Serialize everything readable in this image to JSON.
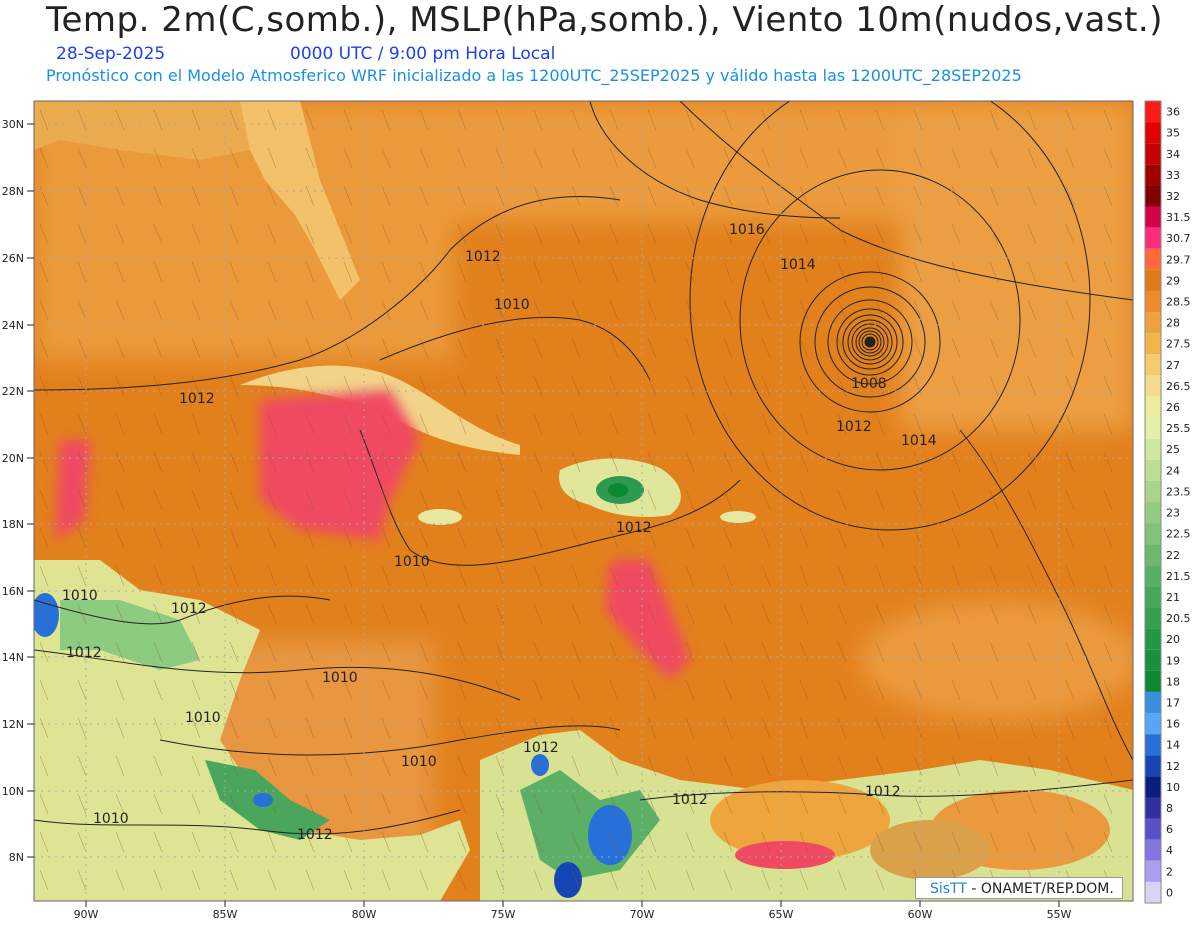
{
  "header": {
    "title": "Temp. 2m(C,somb.), MSLP(hPa,somb.), Viento 10m(nudos,vast.)",
    "date": "28-Sep-2025",
    "time": "0000 UTC / 9:00 pm Hora Local",
    "forecast_note": "Pronóstico con el Modelo Atmosferico WRF inicializado a las 1200UTC_25SEP2025 y válido hasta las  1200UTC_28SEP2025"
  },
  "axes": {
    "lat_labels": [
      "30N",
      "28N",
      "26N",
      "24N",
      "22N",
      "20N",
      "18N",
      "16N",
      "14N",
      "12N",
      "10N",
      "8N"
    ],
    "lon_labels": [
      "90W",
      "85W",
      "80W",
      "75W",
      "70W",
      "65W",
      "60W",
      "55W"
    ]
  },
  "isobars": [
    "1016",
    "1012",
    "1014",
    "1010",
    "1012",
    "1008",
    "1012",
    "1014",
    "1012",
    "1010",
    "1012",
    "1010",
    "1012",
    "1010",
    "1010",
    "1010",
    "1012",
    "1012",
    "1010",
    "1012",
    "1012"
  ],
  "legend": {
    "levels": [
      "36",
      "35",
      "34",
      "33",
      "32",
      "31.5",
      "30.7",
      "29.7",
      "29",
      "28.5",
      "28",
      "27.5",
      "27",
      "26.5",
      "26",
      "25.5",
      "25",
      "24",
      "23.5",
      "23",
      "22.5",
      "22",
      "21.5",
      "21",
      "20.5",
      "20",
      "19",
      "18",
      "17",
      "16",
      "14",
      "12",
      "10",
      "8",
      "6",
      "4",
      "2",
      "0"
    ],
    "colors": [
      "#ff1a1a",
      "#e00000",
      "#c40000",
      "#a00000",
      "#800000",
      "#d4004a",
      "#ff2a7a",
      "#ff6a3a",
      "#e27a1a",
      "#ea8c2c",
      "#f0a040",
      "#f2b54a",
      "#f4cc6e",
      "#f4dc8c",
      "#f0ea9e",
      "#e4efa8",
      "#cfe6a0",
      "#bcdd96",
      "#a8d48c",
      "#94cb82",
      "#80c278",
      "#6cb96e",
      "#58b064",
      "#44a75a",
      "#34a050",
      "#249846",
      "#18903e",
      "#0c8834",
      "#3a8fe0",
      "#56a8f4",
      "#2670d8",
      "#1446b4",
      "#0a1e80",
      "#3030a0",
      "#5a50c8",
      "#8474e0",
      "#aa9ef0",
      "#d8d4f8"
    ]
  },
  "credit": {
    "brand": "SisTT",
    "org": " - ONAMET/REP.DOM."
  }
}
